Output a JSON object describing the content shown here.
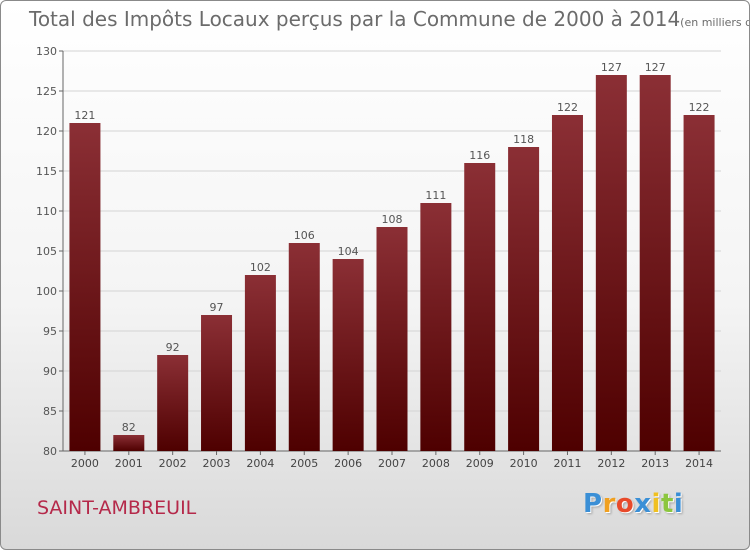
{
  "chart_data": {
    "type": "bar",
    "title": "Total des Impôts Locaux perçus par la Commune de 2000 à 2014",
    "unit_note": "(en milliers d'€)",
    "categories": [
      "2000",
      "2001",
      "2002",
      "2003",
      "2004",
      "2005",
      "2006",
      "2007",
      "2008",
      "2009",
      "2010",
      "2011",
      "2012",
      "2013",
      "2014"
    ],
    "values": [
      121,
      82,
      92,
      97,
      102,
      106,
      104,
      108,
      111,
      116,
      118,
      122,
      127,
      127,
      122
    ],
    "ylim": [
      80,
      130
    ],
    "yticks": [
      80,
      85,
      90,
      95,
      100,
      105,
      110,
      115,
      120,
      125,
      130
    ],
    "grid": "horizontal",
    "bar_color_top": "#8b2f35",
    "bar_color_bottom": "#4e0000"
  },
  "commune": "SAINT-AMBREUIL",
  "logo": {
    "letters": [
      "P",
      "r",
      "o",
      "x",
      "i",
      "t",
      "i"
    ],
    "colors": [
      "#3a8fd6",
      "#f0a020",
      "#e84a2a",
      "#3a8fd6",
      "#f0c020",
      "#8cc63f",
      "#3a8fd6"
    ]
  }
}
